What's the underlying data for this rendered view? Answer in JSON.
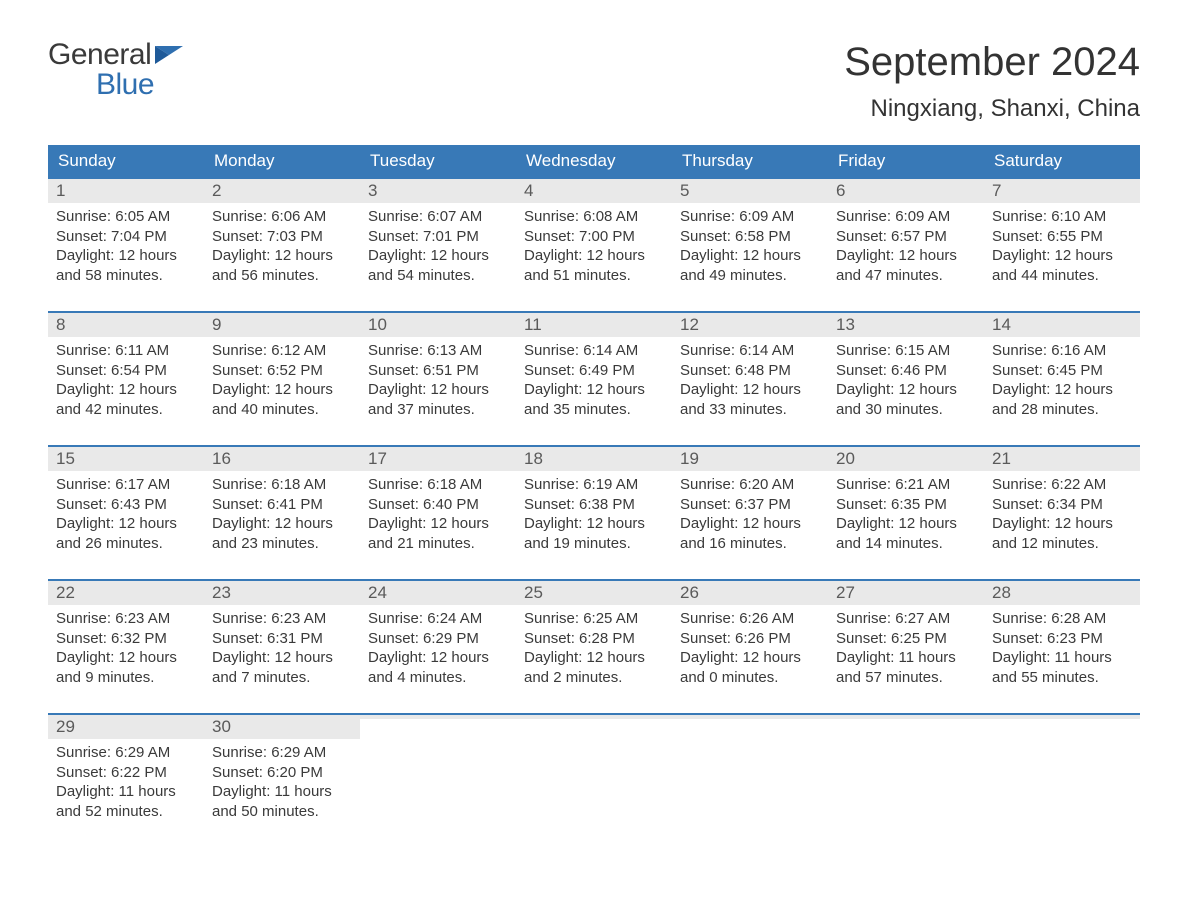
{
  "logo": {
    "word1": "General",
    "word2": "Blue"
  },
  "title": "September 2024",
  "location": "Ningxiang, Shanxi, China",
  "colors": {
    "header_bg": "#3879b7",
    "header_text": "#ffffff",
    "daynum_bg": "#e9e9e9",
    "week_border": "#3879b7",
    "body_text": "#3a3a3a",
    "page_bg": "#ffffff",
    "logo_gray": "#3a3a3a",
    "logo_blue": "#2f6fb0"
  },
  "layout": {
    "columns": 7,
    "rows": 5
  },
  "dow": [
    "Sunday",
    "Monday",
    "Tuesday",
    "Wednesday",
    "Thursday",
    "Friday",
    "Saturday"
  ],
  "weeks": [
    [
      {
        "n": "1",
        "sr": "Sunrise: 6:05 AM",
        "ss": "Sunset: 7:04 PM",
        "d1": "Daylight: 12 hours",
        "d2": "and 58 minutes."
      },
      {
        "n": "2",
        "sr": "Sunrise: 6:06 AM",
        "ss": "Sunset: 7:03 PM",
        "d1": "Daylight: 12 hours",
        "d2": "and 56 minutes."
      },
      {
        "n": "3",
        "sr": "Sunrise: 6:07 AM",
        "ss": "Sunset: 7:01 PM",
        "d1": "Daylight: 12 hours",
        "d2": "and 54 minutes."
      },
      {
        "n": "4",
        "sr": "Sunrise: 6:08 AM",
        "ss": "Sunset: 7:00 PM",
        "d1": "Daylight: 12 hours",
        "d2": "and 51 minutes."
      },
      {
        "n": "5",
        "sr": "Sunrise: 6:09 AM",
        "ss": "Sunset: 6:58 PM",
        "d1": "Daylight: 12 hours",
        "d2": "and 49 minutes."
      },
      {
        "n": "6",
        "sr": "Sunrise: 6:09 AM",
        "ss": "Sunset: 6:57 PM",
        "d1": "Daylight: 12 hours",
        "d2": "and 47 minutes."
      },
      {
        "n": "7",
        "sr": "Sunrise: 6:10 AM",
        "ss": "Sunset: 6:55 PM",
        "d1": "Daylight: 12 hours",
        "d2": "and 44 minutes."
      }
    ],
    [
      {
        "n": "8",
        "sr": "Sunrise: 6:11 AM",
        "ss": "Sunset: 6:54 PM",
        "d1": "Daylight: 12 hours",
        "d2": "and 42 minutes."
      },
      {
        "n": "9",
        "sr": "Sunrise: 6:12 AM",
        "ss": "Sunset: 6:52 PM",
        "d1": "Daylight: 12 hours",
        "d2": "and 40 minutes."
      },
      {
        "n": "10",
        "sr": "Sunrise: 6:13 AM",
        "ss": "Sunset: 6:51 PM",
        "d1": "Daylight: 12 hours",
        "d2": "and 37 minutes."
      },
      {
        "n": "11",
        "sr": "Sunrise: 6:14 AM",
        "ss": "Sunset: 6:49 PM",
        "d1": "Daylight: 12 hours",
        "d2": "and 35 minutes."
      },
      {
        "n": "12",
        "sr": "Sunrise: 6:14 AM",
        "ss": "Sunset: 6:48 PM",
        "d1": "Daylight: 12 hours",
        "d2": "and 33 minutes."
      },
      {
        "n": "13",
        "sr": "Sunrise: 6:15 AM",
        "ss": "Sunset: 6:46 PM",
        "d1": "Daylight: 12 hours",
        "d2": "and 30 minutes."
      },
      {
        "n": "14",
        "sr": "Sunrise: 6:16 AM",
        "ss": "Sunset: 6:45 PM",
        "d1": "Daylight: 12 hours",
        "d2": "and 28 minutes."
      }
    ],
    [
      {
        "n": "15",
        "sr": "Sunrise: 6:17 AM",
        "ss": "Sunset: 6:43 PM",
        "d1": "Daylight: 12 hours",
        "d2": "and 26 minutes."
      },
      {
        "n": "16",
        "sr": "Sunrise: 6:18 AM",
        "ss": "Sunset: 6:41 PM",
        "d1": "Daylight: 12 hours",
        "d2": "and 23 minutes."
      },
      {
        "n": "17",
        "sr": "Sunrise: 6:18 AM",
        "ss": "Sunset: 6:40 PM",
        "d1": "Daylight: 12 hours",
        "d2": "and 21 minutes."
      },
      {
        "n": "18",
        "sr": "Sunrise: 6:19 AM",
        "ss": "Sunset: 6:38 PM",
        "d1": "Daylight: 12 hours",
        "d2": "and 19 minutes."
      },
      {
        "n": "19",
        "sr": "Sunrise: 6:20 AM",
        "ss": "Sunset: 6:37 PM",
        "d1": "Daylight: 12 hours",
        "d2": "and 16 minutes."
      },
      {
        "n": "20",
        "sr": "Sunrise: 6:21 AM",
        "ss": "Sunset: 6:35 PM",
        "d1": "Daylight: 12 hours",
        "d2": "and 14 minutes."
      },
      {
        "n": "21",
        "sr": "Sunrise: 6:22 AM",
        "ss": "Sunset: 6:34 PM",
        "d1": "Daylight: 12 hours",
        "d2": "and 12 minutes."
      }
    ],
    [
      {
        "n": "22",
        "sr": "Sunrise: 6:23 AM",
        "ss": "Sunset: 6:32 PM",
        "d1": "Daylight: 12 hours",
        "d2": "and 9 minutes."
      },
      {
        "n": "23",
        "sr": "Sunrise: 6:23 AM",
        "ss": "Sunset: 6:31 PM",
        "d1": "Daylight: 12 hours",
        "d2": "and 7 minutes."
      },
      {
        "n": "24",
        "sr": "Sunrise: 6:24 AM",
        "ss": "Sunset: 6:29 PM",
        "d1": "Daylight: 12 hours",
        "d2": "and 4 minutes."
      },
      {
        "n": "25",
        "sr": "Sunrise: 6:25 AM",
        "ss": "Sunset: 6:28 PM",
        "d1": "Daylight: 12 hours",
        "d2": "and 2 minutes."
      },
      {
        "n": "26",
        "sr": "Sunrise: 6:26 AM",
        "ss": "Sunset: 6:26 PM",
        "d1": "Daylight: 12 hours",
        "d2": "and 0 minutes."
      },
      {
        "n": "27",
        "sr": "Sunrise: 6:27 AM",
        "ss": "Sunset: 6:25 PM",
        "d1": "Daylight: 11 hours",
        "d2": "and 57 minutes."
      },
      {
        "n": "28",
        "sr": "Sunrise: 6:28 AM",
        "ss": "Sunset: 6:23 PM",
        "d1": "Daylight: 11 hours",
        "d2": "and 55 minutes."
      }
    ],
    [
      {
        "n": "29",
        "sr": "Sunrise: 6:29 AM",
        "ss": "Sunset: 6:22 PM",
        "d1": "Daylight: 11 hours",
        "d2": "and 52 minutes."
      },
      {
        "n": "30",
        "sr": "Sunrise: 6:29 AM",
        "ss": "Sunset: 6:20 PM",
        "d1": "Daylight: 11 hours",
        "d2": "and 50 minutes."
      },
      {
        "empty": true
      },
      {
        "empty": true
      },
      {
        "empty": true
      },
      {
        "empty": true
      },
      {
        "empty": true
      }
    ]
  ]
}
